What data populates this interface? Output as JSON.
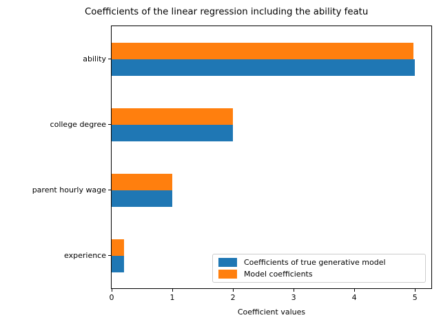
{
  "chart_data": {
    "type": "bar",
    "orientation": "horizontal",
    "title": "Coefficients of the linear regression including the ability featu",
    "title_truncated": true,
    "xlabel": "Coefficient values",
    "ylabel": "",
    "categories": [
      "ability",
      "college degree",
      "parent hourly wage",
      "experience"
    ],
    "series": [
      {
        "name": "Coefficients of true generative model",
        "color": "#1f77b4",
        "values": [
          5.0,
          2.0,
          1.0,
          0.2
        ]
      },
      {
        "name": "Model coefficients",
        "color": "#ff7f0e",
        "values": [
          4.98,
          2.0,
          1.0,
          0.2
        ]
      }
    ],
    "x_ticks": [
      0,
      1,
      2,
      3,
      4,
      5
    ],
    "xlim": [
      0,
      5.27
    ],
    "grid": false,
    "legend_position": "lower right",
    "background_color": "#ffffff",
    "spine_color": "#000000",
    "legend_border_color": "#cccccc"
  }
}
